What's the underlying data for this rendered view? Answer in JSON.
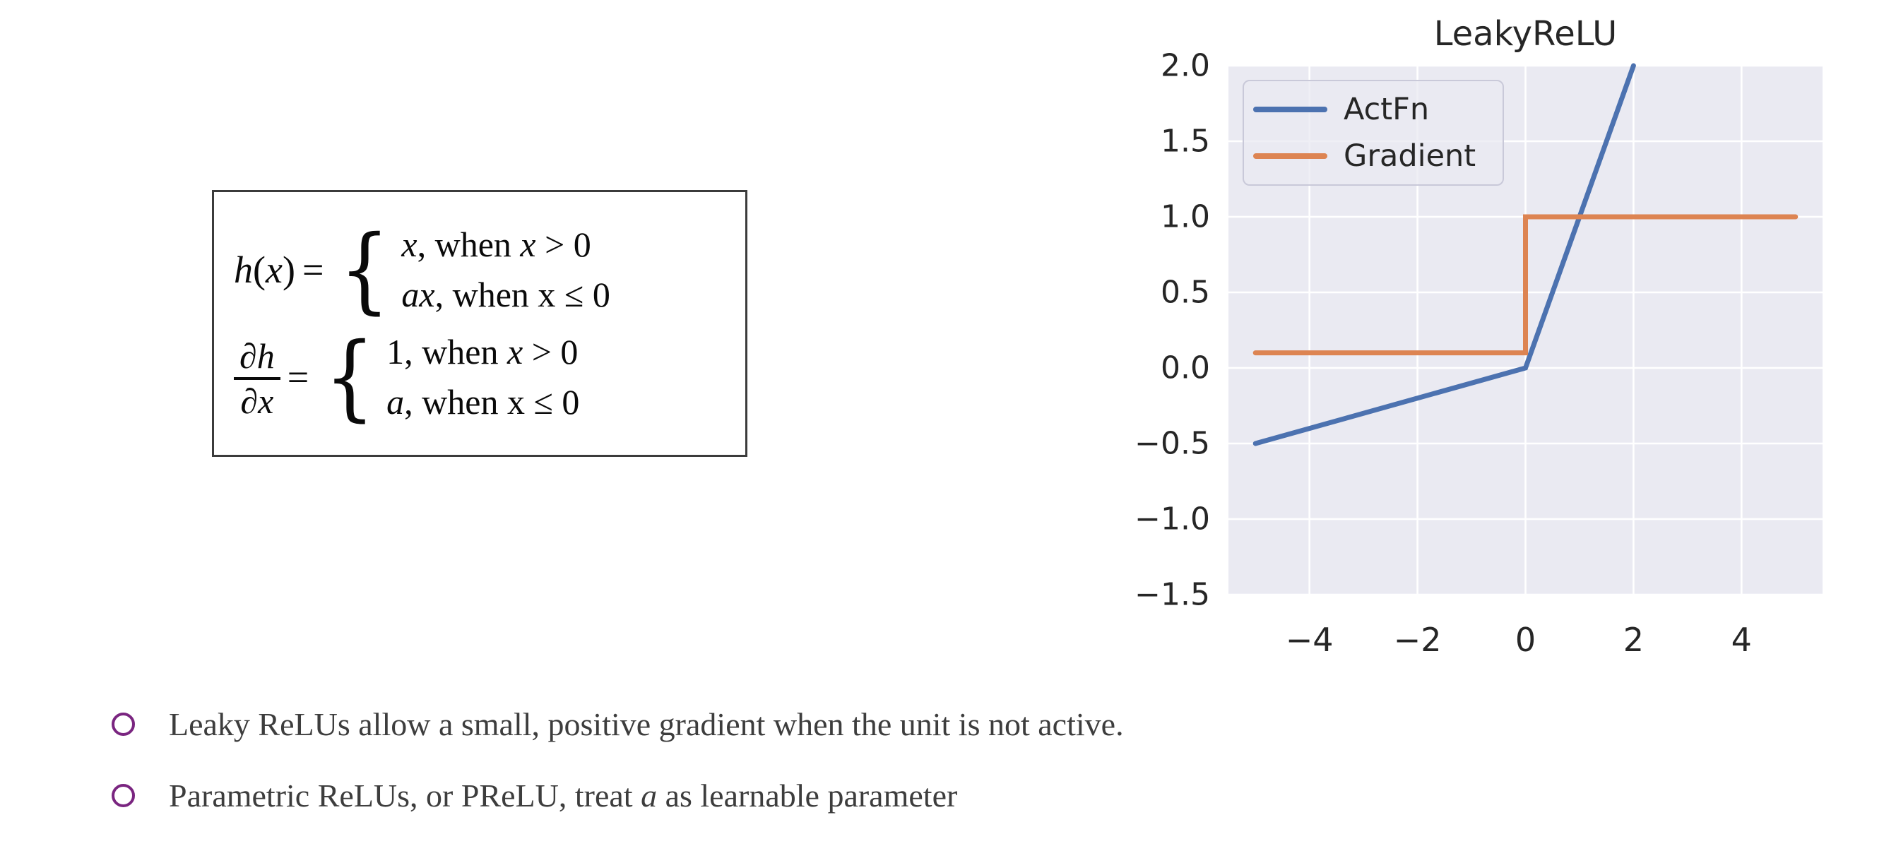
{
  "slide": {
    "background": "#ffffff"
  },
  "formula_box": {
    "border_color": "#3b3b3b",
    "rows": [
      {
        "lhs": {
          "type": "inline",
          "segments": [
            {
              "t": "h",
              "i": true
            },
            {
              "t": "(",
              "i": false
            },
            {
              "t": "x",
              "i": true
            },
            {
              "t": ")",
              "i": false
            }
          ]
        },
        "eq": "=",
        "brace": "{",
        "cases": [
          [
            {
              "t": "x",
              "i": true
            },
            {
              "t": ", when ",
              "i": false
            },
            {
              "t": "x",
              "i": true
            },
            {
              "t": " > 0",
              "i": false
            }
          ],
          [
            {
              "t": "ax",
              "i": true
            },
            {
              "t": ", when x ≤ 0",
              "i": false
            }
          ]
        ]
      },
      {
        "lhs": {
          "type": "frac",
          "num": [
            {
              "t": "∂h",
              "i": true
            }
          ],
          "den": [
            {
              "t": "∂x",
              "i": true
            }
          ]
        },
        "eq": "=",
        "brace": "{",
        "cases": [
          [
            {
              "t": "1, when ",
              "i": false
            },
            {
              "t": "x",
              "i": true
            },
            {
              "t": " > 0",
              "i": false
            }
          ],
          [
            {
              "t": "a",
              "i": true
            },
            {
              "t": ", when x ≤ 0",
              "i": false
            }
          ]
        ]
      }
    ]
  },
  "chart_data": {
    "type": "line",
    "title": "LeakyReLU",
    "xlabel": "",
    "ylabel": "",
    "xlim": [
      -5.5,
      5.5
    ],
    "ylim": [
      -1.5,
      2.0
    ],
    "grid": true,
    "plot_bg": "#eaeaf2",
    "grid_color": "#ffffff",
    "text_color": "#262626",
    "legend_position": "upper left",
    "xticks": [
      {
        "v": -4,
        "label": "−4"
      },
      {
        "v": -2,
        "label": "−2"
      },
      {
        "v": 0,
        "label": "0"
      },
      {
        "v": 2,
        "label": "2"
      },
      {
        "v": 4,
        "label": "4"
      }
    ],
    "yticks": [
      {
        "v": 2.0,
        "label": "2.0"
      },
      {
        "v": 1.5,
        "label": "1.5"
      },
      {
        "v": 1.0,
        "label": "1.0"
      },
      {
        "v": 0.5,
        "label": "0.5"
      },
      {
        "v": 0.0,
        "label": "0.0"
      },
      {
        "v": -0.5,
        "label": "−0.5"
      },
      {
        "v": -1.0,
        "label": "−1.0"
      },
      {
        "v": -1.5,
        "label": "−1.5"
      }
    ],
    "series": [
      {
        "name": "ActFn",
        "color": "#4c72b0",
        "points": [
          [
            -5,
            -0.5
          ],
          [
            0,
            0
          ],
          [
            2,
            2
          ]
        ]
      },
      {
        "name": "Gradient",
        "color": "#dd8452",
        "points": [
          [
            -5,
            0.1
          ],
          [
            0,
            0.1
          ],
          [
            0,
            1
          ],
          [
            5,
            1
          ]
        ]
      }
    ]
  },
  "bullets": {
    "marker_color": "#7a2580",
    "text_color": "#3d3d3d",
    "items": [
      {
        "segments": [
          {
            "t": "Leaky ReLUs allow a small, positive gradient when the unit is not active.",
            "i": false
          }
        ]
      },
      {
        "segments": [
          {
            "t": "Parametric ReLUs, or PReLU, treat ",
            "i": false
          },
          {
            "t": "a",
            "i": true
          },
          {
            "t": " as learnable parameter",
            "i": false
          }
        ]
      }
    ]
  }
}
